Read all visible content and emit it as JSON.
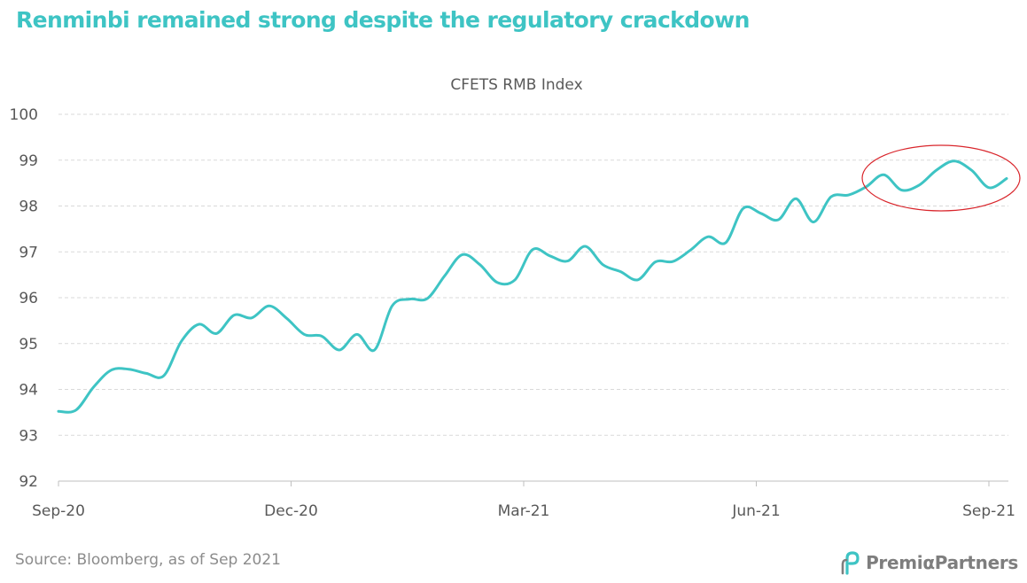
{
  "headline": "Renminbi remained strong despite the regulatory crackdown",
  "source_note": "Source: Bloomberg, as of Sep 2021",
  "brand": {
    "name": "PremiαPartners",
    "logo_icon": "premia-partners-logo-icon",
    "color": "#7e7e7e",
    "accent": "#3ec4c4"
  },
  "colors": {
    "headline": "#3ec4c4",
    "line": "#3ec4c4",
    "highlight_ellipse": "#d9262c",
    "grid": "#d9d9d9",
    "axis_text": "#595959"
  },
  "chart_data": {
    "type": "line",
    "title": "CFETS RMB Index",
    "xlabel": "",
    "ylabel": "",
    "ylim": [
      92,
      100
    ],
    "yticks": [
      92,
      93,
      94,
      95,
      96,
      97,
      98,
      99,
      100
    ],
    "x_tick_labels": [
      "Sep-20",
      "Dec-20",
      "Mar-21",
      "Jun-21",
      "Sep-21"
    ],
    "grid": "horizontal dashed",
    "legend": "none",
    "series": [
      {
        "values": [
          93.52,
          93.55,
          94.05,
          94.42,
          94.44,
          94.35,
          94.3,
          95.05,
          95.42,
          95.22,
          95.62,
          95.56,
          95.82,
          95.55,
          95.2,
          95.16,
          94.86,
          95.2,
          94.86,
          95.82,
          95.97,
          95.98,
          96.48,
          96.94,
          96.72,
          96.33,
          96.39,
          97.05,
          96.91,
          96.8,
          97.12,
          96.72,
          96.57,
          96.39,
          96.78,
          96.79,
          97.04,
          97.33,
          97.2,
          97.95,
          97.84,
          97.7,
          98.16,
          97.65,
          98.2,
          98.24,
          98.42,
          98.68,
          98.35,
          98.45,
          98.78,
          98.98,
          98.78,
          98.4,
          98.6
        ]
      }
    ],
    "annotation": {
      "type": "ellipse",
      "highlight": "last 2 months near 98.3–99.0"
    }
  }
}
